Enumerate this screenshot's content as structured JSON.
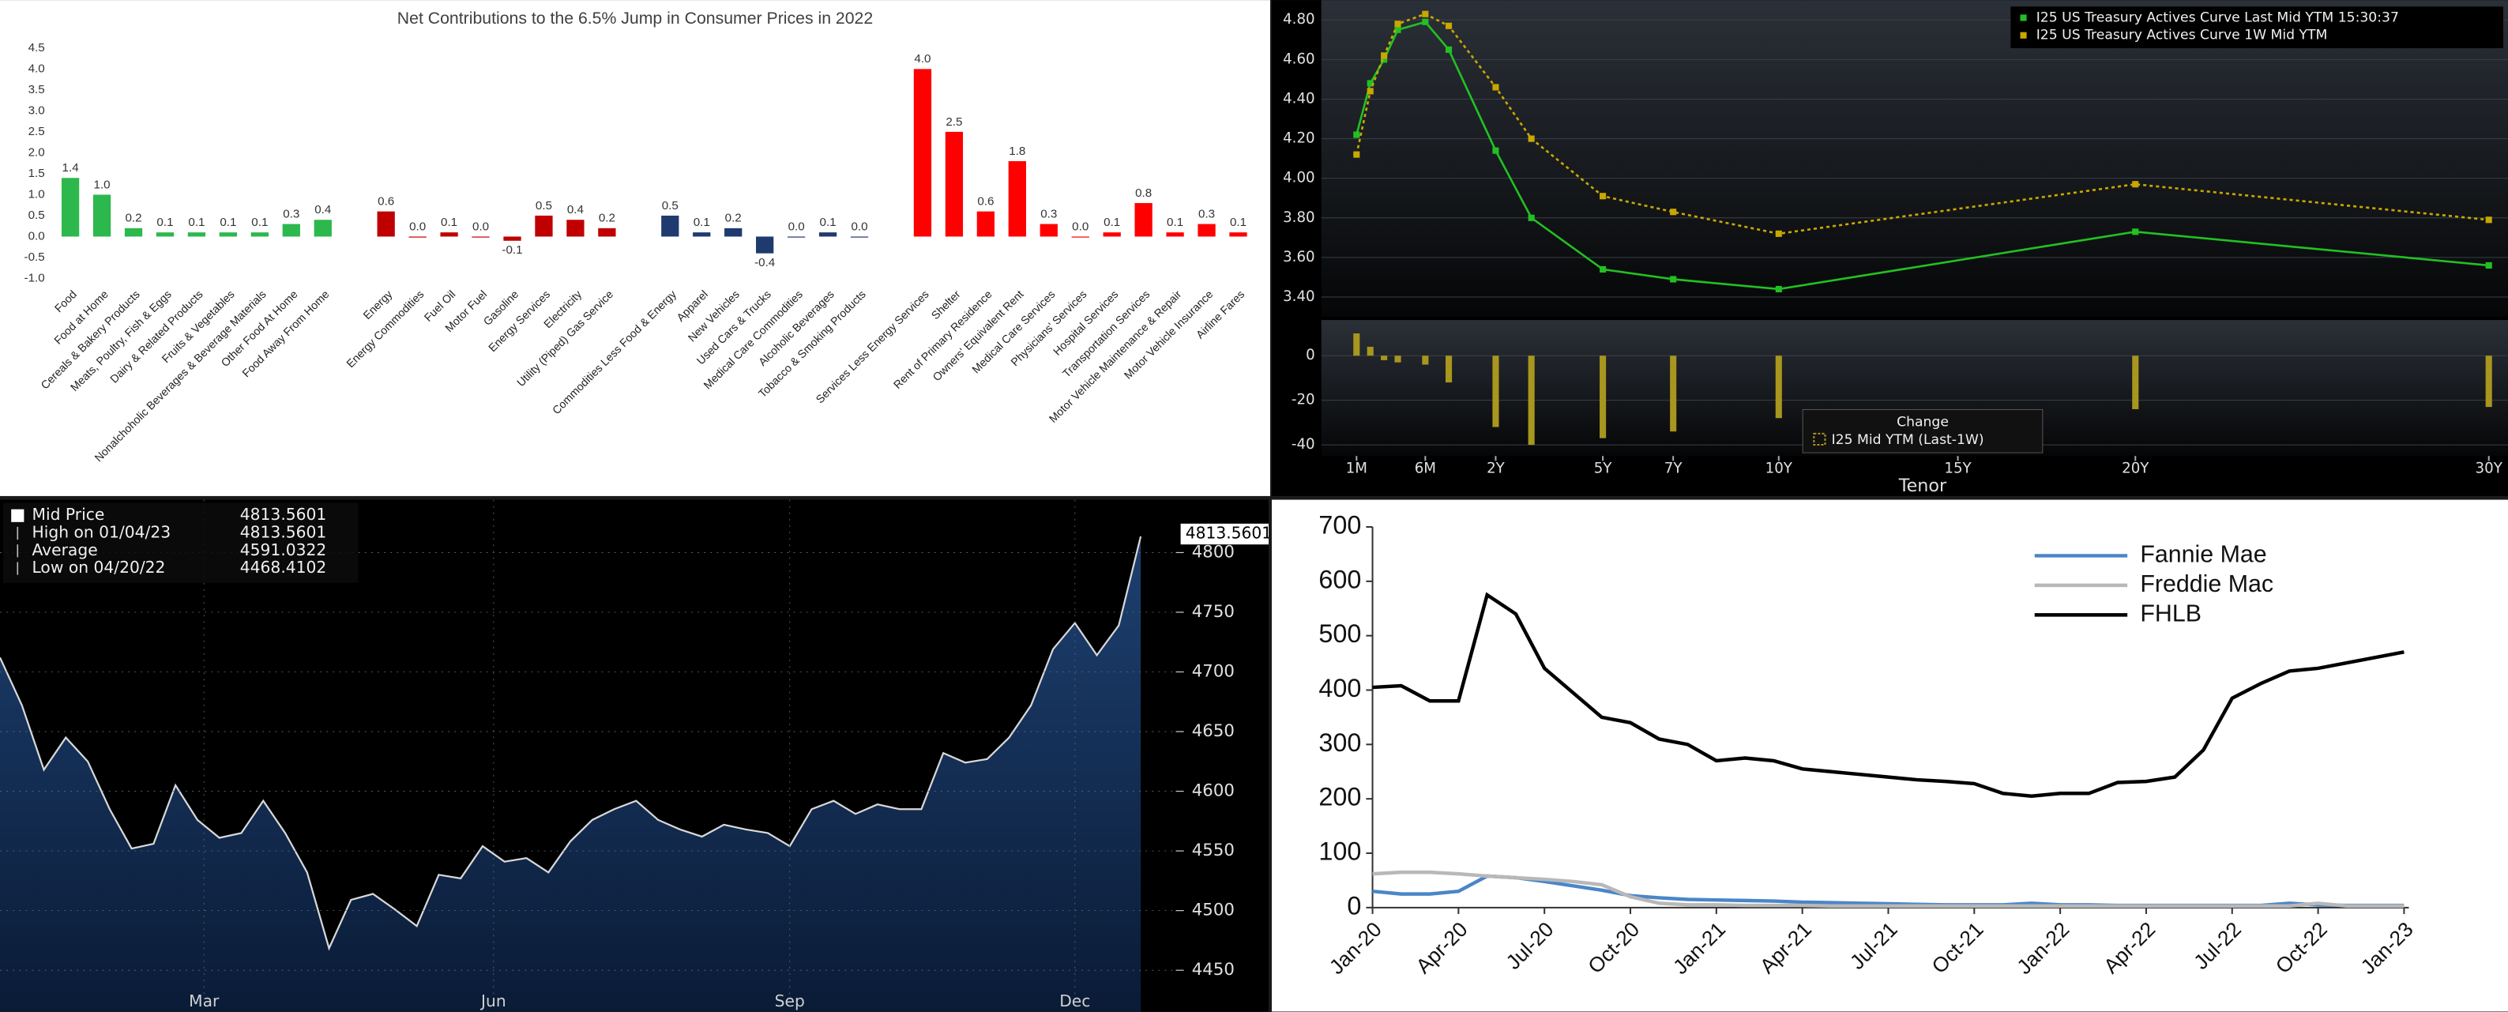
{
  "chart_data": [
    {
      "type": "bar",
      "title": "Net Contributions to the 6.5% Jump in Consumer Prices in 2022",
      "categories": [
        "Food",
        "Food at Home",
        "Cereals & Bakery Products",
        "Meats, Poultry, Fish & Eggs",
        "Dairy & Related Products",
        "Fruits & Vegetables",
        "Nonalchoholic Beverages & Beverage Materials",
        "Other Food At Home",
        "Food Away From Home",
        null,
        "Energy",
        "Energy Commodities",
        "Fuel Oil",
        "Motor Fuel",
        "Gasoline",
        "Energy Services",
        "Electricity",
        "Utility (Piped) Gas Service",
        null,
        "Commodities Less Food & Energy",
        "Apparel",
        "New Vehicles",
        "Used Cars & Trucks",
        "Medical Care Commodities",
        "Alcoholic Beverages",
        "Tobacco & Smoking Products",
        null,
        "Services Less Energy Services",
        "Shelter",
        "Rent of Primary Residence",
        "Owners' Equivalent Rent",
        "Medical Care Services",
        "Physicians' Services",
        "Hospital Services",
        "Transportation Services",
        "Motor Vehicle Maintenance & Repair",
        "Motor Vehicle Insurance",
        "Airline Fares"
      ],
      "values": [
        1.4,
        1.0,
        0.2,
        0.1,
        0.1,
        0.1,
        0.1,
        0.3,
        0.4,
        null,
        0.6,
        0,
        0.1,
        0,
        -0.1,
        0.5,
        0.4,
        0.2,
        null,
        0.5,
        0.1,
        0.2,
        -0.4,
        0,
        0.1,
        0,
        null,
        4.0,
        2.5,
        0.6,
        1.8,
        0.3,
        0,
        0.1,
        0.8,
        0.1,
        0.3,
        0.1
      ],
      "value_labels": [
        "1.4",
        "1.0",
        "0.2",
        "0.1",
        "0.1",
        "0.1",
        "0.1",
        "0.3",
        "0.4",
        null,
        "0.6",
        "0.0",
        "0.1",
        "0.0",
        "-0.1",
        "0.5",
        "0.4",
        "0.2",
        null,
        "0.5",
        "0.1",
        "0.2",
        "-0.4",
        "0.0",
        "0.1",
        "0.0",
        null,
        "4.0",
        "2.5",
        "0.6",
        "1.8",
        "0.3",
        "0.0",
        "0.1",
        "0.8",
        "0.1",
        "0.3",
        "0.1"
      ],
      "colors": [
        "#2db84d",
        "#2db84d",
        "#2db84d",
        "#2db84d",
        "#2db84d",
        "#2db84d",
        "#2db84d",
        "#2db84d",
        "#2db84d",
        null,
        "#c00000",
        "#c00000",
        "#c00000",
        "#c00000",
        "#c00000",
        "#c00000",
        "#c00000",
        "#c00000",
        null,
        "#1f3a6e",
        "#1f3a6e",
        "#1f3a6e",
        "#1f3a6e",
        "#1f3a6e",
        "#1f3a6e",
        "#1f3a6e",
        null,
        "#ff0000",
        "#ff0000",
        "#ff0000",
        "#ff0000",
        "#ff0000",
        "#ff0000",
        "#ff0000",
        "#ff0000",
        "#ff0000",
        "#ff0000",
        "#ff0000"
      ],
      "ylim": [
        -1,
        4.5
      ],
      "yticks": [
        {
          "value": -1,
          "label": "-1.0"
        },
        -0.5,
        {
          "value": 0,
          "label": "0.0"
        },
        0.5,
        {
          "value": 1,
          "label": "1.0"
        },
        1.5,
        {
          "value": 2,
          "label": "2.0"
        },
        2.5,
        {
          "value": 3,
          "label": "3.0"
        },
        3.5,
        {
          "value": 4,
          "label": "4.0"
        },
        4.5
      ]
    },
    {
      "type": "line",
      "legend": "top-right",
      "x": [
        0.0833,
        0.1667,
        0.25,
        0.3333,
        0.5,
        1,
        2,
        3,
        5,
        7,
        10,
        20,
        30
      ],
      "series": [
        {
          "name": "I25 US Treasury Actives Curve Last Mid YTM 15:30:37",
          "color": "#22c022",
          "values": [
            4.22,
            4.48,
            4.6,
            4.75,
            4.79,
            4.65,
            4.14,
            3.8,
            3.54,
            3.49,
            3.44,
            3.73,
            3.56
          ]
        },
        {
          "name": "I25 US Treasury Actives Curve 1W Mid YTM",
          "color": "#c8a800",
          "values": [
            4.12,
            4.44,
            4.62,
            4.78,
            4.83,
            4.77,
            4.46,
            4.2,
            3.91,
            3.83,
            3.72,
            3.97,
            3.79
          ]
        }
      ],
      "ylim": [
        3.3,
        4.9
      ],
      "yticks": [
        {
          "value": 3.4,
          "label": "3.40"
        },
        {
          "value": 3.6,
          "label": "3.60"
        },
        {
          "value": 3.8,
          "label": "3.80"
        },
        {
          "value": 4.0,
          "label": "4.00"
        },
        {
          "value": 4.2,
          "label": "4.20"
        },
        {
          "value": 4.4,
          "label": "4.40"
        },
        {
          "value": 4.6,
          "label": "4.60"
        },
        {
          "value": 4.8,
          "label": "4.80"
        }
      ]
    },
    {
      "type": "bar",
      "legend_title": "Change",
      "x": [
        0.0833,
        0.1667,
        0.25,
        0.3333,
        0.5,
        1,
        2,
        3,
        5,
        7,
        10,
        20,
        30
      ],
      "series": [
        {
          "name": "I25 Mid YTM (Last-1W)",
          "color": "#a8961e",
          "values": [
            10,
            4,
            -2,
            -3,
            -4,
            -12,
            -32,
            -40,
            -37,
            -34,
            -28,
            -24,
            -23
          ]
        }
      ],
      "ylim": [
        -45,
        16
      ],
      "yticks": [
        -40,
        -20,
        0
      ],
      "xticks": [
        {
          "value": 0.0833,
          "label": "1M"
        },
        {
          "value": 0.5,
          "label": "6M"
        },
        {
          "value": 2,
          "label": "2Y"
        },
        {
          "value": 5,
          "label": "5Y"
        },
        {
          "value": 7,
          "label": "7Y"
        },
        {
          "value": 10,
          "label": "10Y"
        },
        {
          "value": 15,
          "label": "15Y"
        },
        {
          "value": 20,
          "label": "20Y"
        },
        {
          "value": 30,
          "label": "30Y"
        }
      ],
      "xlabel": "Tenor"
    },
    {
      "type": "area",
      "series": [
        {
          "name": "Mid Price",
          "color": "#16345e",
          "values": [
            4712,
            4672,
            4618,
            4645,
            4625,
            4585,
            4552,
            4556,
            4605,
            4576,
            4561,
            4565,
            4592,
            4565,
            4532,
            4468.4102,
            4509,
            4514,
            4501,
            4487,
            4530,
            4527,
            4554,
            4541,
            4544,
            4532,
            4558,
            4576,
            4585,
            4592,
            4576,
            4568,
            4562,
            4572,
            4568,
            4565,
            4554,
            4585,
            4592,
            4581,
            4589,
            4585,
            4585,
            4632,
            4624,
            4627,
            4645,
            4672,
            4719,
            4741,
            4714,
            4739,
            4813.5601
          ]
        }
      ],
      "stats": [
        {
          "label": "High on 01/04/23",
          "value": 4813.5601
        },
        {
          "label": "Average",
          "value": 4591.0322
        },
        {
          "label": "Low on 04/20/22",
          "value": 4468.4102
        }
      ],
      "xlim": [
        0,
        53.6
      ],
      "xticks": [
        {
          "value": 9.3,
          "label": "Mar"
        },
        {
          "value": 22.5,
          "label": "Jun"
        },
        {
          "value": 36,
          "label": "Sep"
        },
        {
          "value": 49,
          "label": "Dec"
        }
      ],
      "ylim": [
        4414,
        4843
      ],
      "yticks": [
        4450,
        4500,
        4550,
        4600,
        4650,
        4700,
        4750,
        4800
      ]
    },
    {
      "type": "line",
      "legend": "top-right",
      "categories": [
        "Jan-20",
        null,
        null,
        "Apr-20",
        null,
        null,
        "Jul-20",
        null,
        null,
        "Oct-20",
        null,
        null,
        "Jan-21",
        null,
        null,
        "Apr-21",
        null,
        null,
        "Jul-21",
        null,
        null,
        "Oct-21",
        null,
        null,
        "Jan-22",
        null,
        null,
        "Apr-22",
        null,
        null,
        "Jul-22",
        null,
        null,
        "Oct-22",
        null,
        null,
        "Jan-23"
      ],
      "series": [
        {
          "name": "Fannie Mae",
          "color": "#4a86c8",
          "values": [
            30,
            25,
            25,
            30,
            58,
            55,
            48,
            40,
            32,
            22,
            18,
            15,
            14,
            13,
            12,
            10,
            9,
            8,
            7,
            6,
            5,
            5,
            5,
            8,
            5,
            5,
            4,
            4,
            4,
            4,
            4,
            4,
            8,
            5,
            4,
            4,
            4
          ]
        },
        {
          "name": "Freddie Mac",
          "color": "#b8b8b8",
          "values": [
            62,
            65,
            65,
            62,
            58,
            55,
            52,
            48,
            42,
            20,
            8,
            5,
            5,
            4,
            4,
            4,
            3,
            3,
            3,
            3,
            3,
            3,
            3,
            3,
            3,
            3,
            3,
            3,
            3,
            3,
            3,
            3,
            3,
            8,
            3,
            3,
            3
          ]
        },
        {
          "name": "FHLB",
          "color": "#000000",
          "values": [
            405,
            408,
            380,
            380,
            575,
            540,
            440,
            395,
            350,
            340,
            310,
            300,
            270,
            275,
            270,
            255,
            250,
            245,
            240,
            235,
            232,
            228,
            210,
            205,
            210,
            210,
            230,
            232,
            240,
            290,
            385,
            412,
            435,
            440,
            450,
            460,
            470
          ]
        }
      ],
      "ylim": [
        0,
        700
      ],
      "yticks": [
        0,
        100,
        200,
        300,
        400,
        500,
        600,
        700
      ]
    }
  ]
}
